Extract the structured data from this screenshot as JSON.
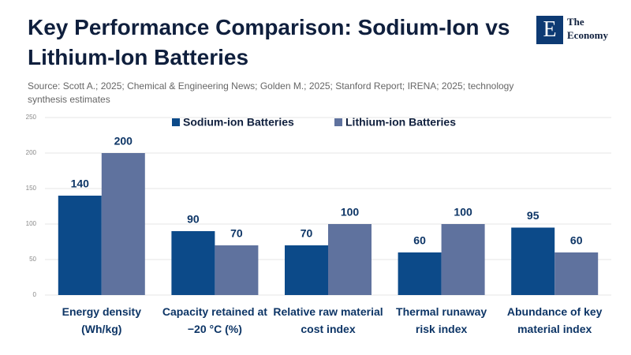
{
  "brand": {
    "mark": "E",
    "line1": "The",
    "line2": "Economy"
  },
  "chart_data": {
    "type": "bar",
    "title": "Key Performance Comparison: Sodium-Ion vs Lithium-Ion Batteries",
    "subtitle": "Source: Scott A.; 2025; Chemical & Engineering News; Golden M.; 2025; Stanford Report; IRENA; 2025; technology synthesis estimates",
    "categories": [
      "Energy density (Wh/kg)",
      "Capacity retained at −20 °C (%)",
      "Relative raw material cost index",
      "Thermal runaway risk index",
      "Abundance of key material index"
    ],
    "series": [
      {
        "name": "Sodium-ion Batteries",
        "color": "#0c4a89",
        "values": [
          140,
          90,
          70,
          60,
          95
        ]
      },
      {
        "name": "Lithium-ion Batteries",
        "color": "#5f729e",
        "values": [
          200,
          70,
          100,
          100,
          60
        ]
      }
    ],
    "ylim": [
      0,
      250
    ],
    "yticks": [
      0,
      50,
      100,
      150,
      200,
      250
    ],
    "grid": true,
    "legend": "top"
  }
}
